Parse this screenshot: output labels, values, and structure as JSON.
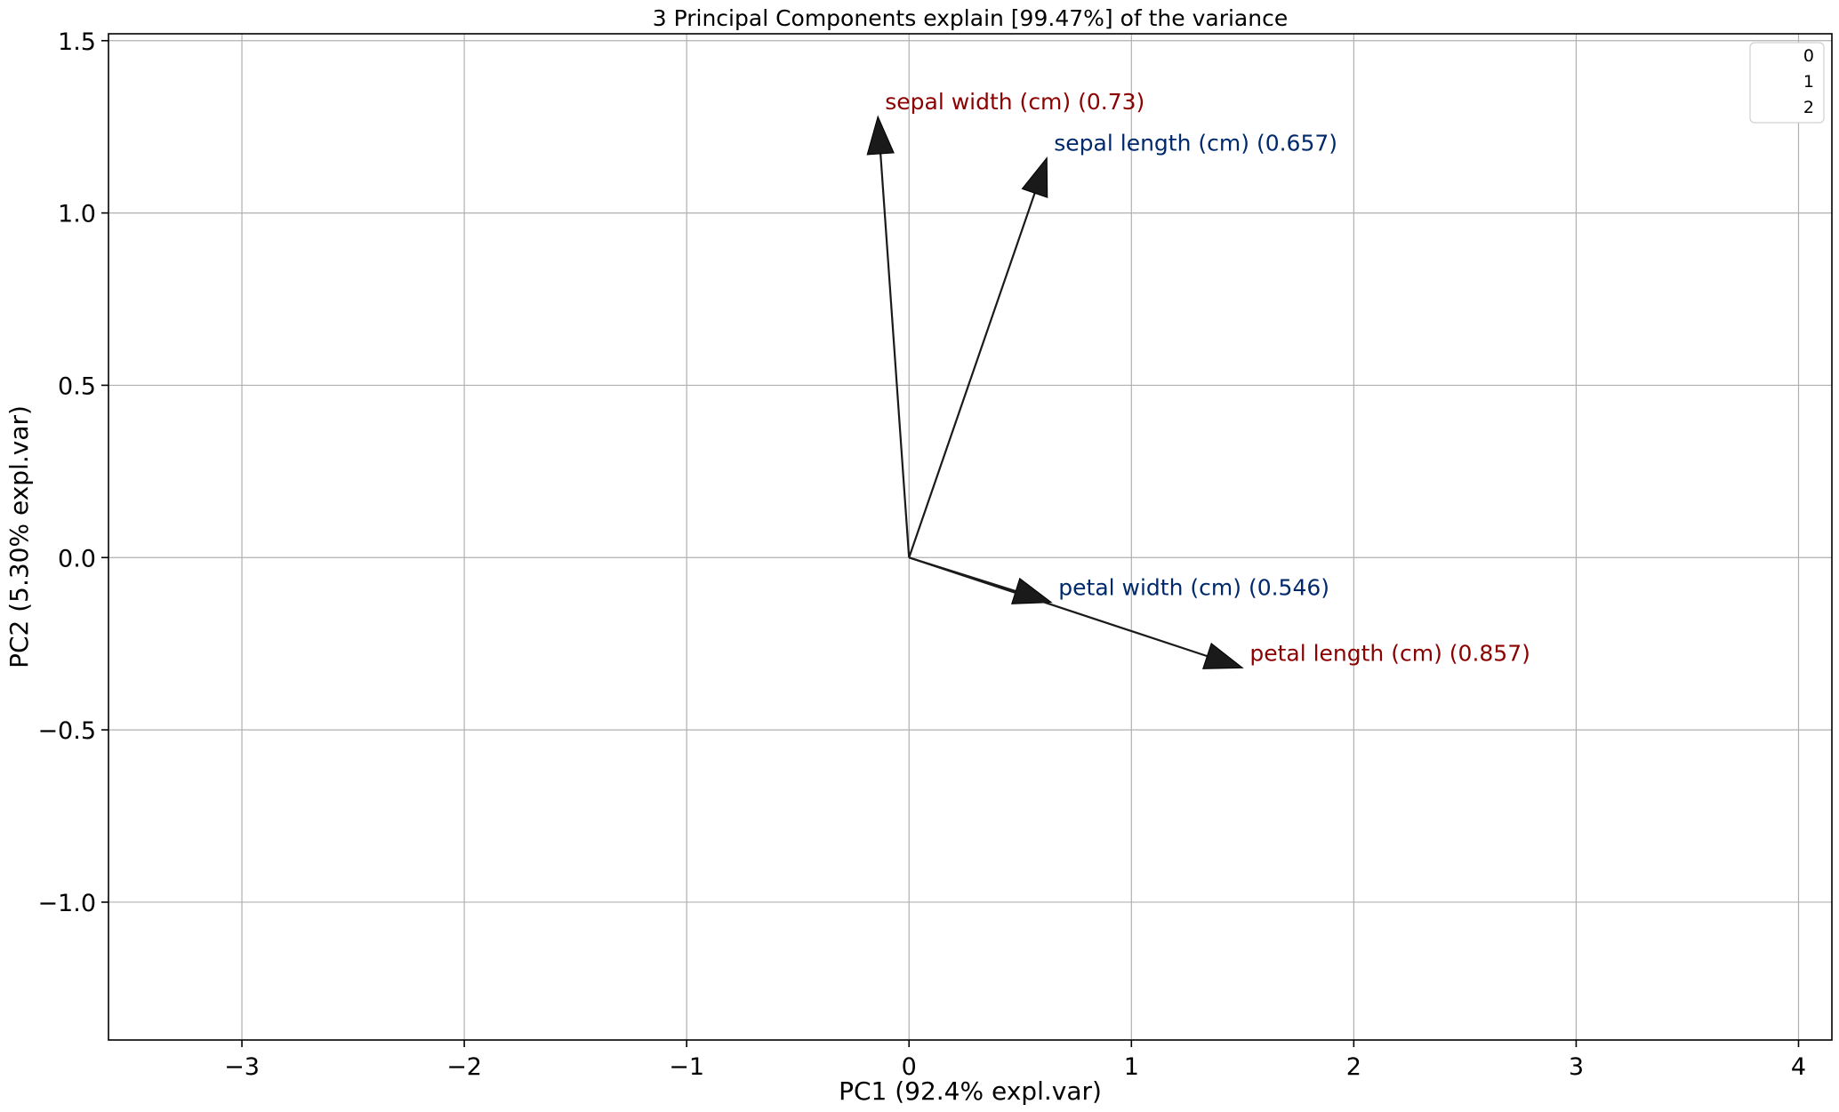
{
  "chart_data": {
    "type": "biplot",
    "title": "3 Principal Components explain [99.47%] of the variance",
    "xlabel": "PC1 (92.4% expl.var)",
    "ylabel": "PC2 (5.30% expl.var)",
    "xlim": [
      -3.6,
      4.15
    ],
    "ylim": [
      -1.4,
      1.52
    ],
    "grid": true,
    "xticks": [
      -3,
      -2,
      -1,
      0,
      1,
      2,
      3,
      4
    ],
    "xtick_labels": [
      "−3",
      "−2",
      "−1",
      "0",
      "1",
      "2",
      "3",
      "4"
    ],
    "yticks": [
      -1.0,
      -0.5,
      0.0,
      0.5,
      1.0,
      1.5
    ],
    "ytick_labels": [
      "−1.0",
      "−0.5",
      "0.0",
      "0.5",
      "1.0",
      "1.5"
    ],
    "legend": {
      "position": "top-right",
      "entries": [
        "0",
        "1",
        "2"
      ]
    },
    "vectors": [
      {
        "label": "sepal width (cm) (0.73)",
        "x": -0.14,
        "y": 1.28,
        "color": "#8b0000"
      },
      {
        "label": "sepal length (cm) (0.657)",
        "x": 0.62,
        "y": 1.16,
        "color": "#00296b"
      },
      {
        "label": "petal width (cm) (0.546)",
        "x": 0.64,
        "y": -0.13,
        "color": "#00296b"
      },
      {
        "label": "petal length (cm) (0.857)",
        "x": 1.5,
        "y": -0.32,
        "color": "#8b0000"
      }
    ],
    "arrow_color": "#1a1a1a"
  }
}
